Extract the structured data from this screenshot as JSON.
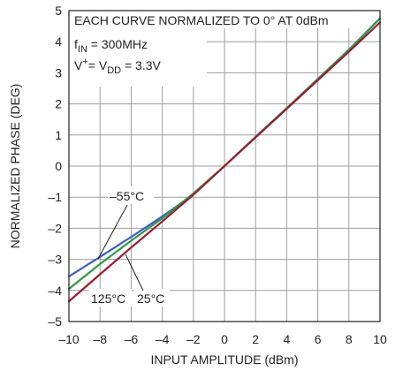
{
  "chart_data": {
    "type": "line",
    "xlabel": "INPUT AMPLITUDE (dBm)",
    "ylabel": "NORMALIZED PHASE (DEG)",
    "xlim": [
      -10,
      10
    ],
    "ylim": [
      -5,
      5
    ],
    "xticks": [
      -10,
      -8,
      -6,
      -4,
      -2,
      0,
      2,
      4,
      6,
      8,
      10
    ],
    "yticks": [
      -5,
      -4,
      -3,
      -2,
      -1,
      0,
      1,
      2,
      3,
      4,
      5
    ],
    "grid": true,
    "annotation": {
      "line1": "EACH CURVE NORMALIZED TO 0° AT 0dBm",
      "line2": {
        "a": "f",
        "b": "IN",
        "c": " = 300MHz"
      },
      "line3": {
        "a": "V",
        "b": "+",
        "c": "= V",
        "d": "DD",
        "e": " = 3.3V"
      }
    },
    "series": [
      {
        "name": "–55°C",
        "color": "#3a5fc4",
        "x": [
          -10,
          -8,
          -6,
          -4,
          -2,
          0,
          2,
          4,
          6,
          8,
          10
        ],
        "y": [
          -3.55,
          -2.92,
          -2.28,
          -1.62,
          -0.92,
          0.0,
          0.94,
          1.86,
          2.8,
          3.74,
          4.75
        ]
      },
      {
        "name": "25°C",
        "color": "#2e9b45",
        "x": [
          -10,
          -8,
          -6,
          -4,
          -2,
          0,
          2,
          4,
          6,
          8,
          10
        ],
        "y": [
          -3.95,
          -3.15,
          -2.4,
          -1.68,
          -0.88,
          0.0,
          0.94,
          1.86,
          2.8,
          3.74,
          4.75
        ]
      },
      {
        "name": "125°C",
        "color": "#9b1b30",
        "x": [
          -10,
          -8,
          -6,
          -4,
          -2,
          0,
          2,
          4,
          6,
          8,
          10
        ],
        "y": [
          -4.35,
          -3.48,
          -2.62,
          -1.78,
          -0.92,
          0.0,
          0.92,
          1.84,
          2.76,
          3.68,
          4.62
        ]
      }
    ]
  }
}
